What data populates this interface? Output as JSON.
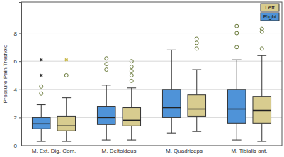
{
  "chart_data": {
    "type": "box",
    "y_label": "Pressure Pain Treshold",
    "categories": [
      "M. Ext. Dig. Com.",
      "M. Deltoideus",
      "M. Quadriceps",
      "M. Tibialis ant."
    ],
    "series": [
      {
        "name": "Right",
        "color": "#4f93d8",
        "values": [
          {
            "min": 0.3,
            "q1": 1.2,
            "median": 1.55,
            "q3": 2.0,
            "max": 2.9,
            "outliers": [
              3.7,
              4.2
            ],
            "extremes": [
              5.0,
              6.1
            ]
          },
          {
            "min": 0.4,
            "q1": 1.5,
            "median": 2.0,
            "q3": 2.8,
            "max": 4.3,
            "outliers": [
              5.4,
              5.8,
              6.2
            ],
            "extremes": []
          },
          {
            "min": 0.9,
            "q1": 2.0,
            "median": 2.7,
            "q3": 4.0,
            "max": 6.8,
            "outliers": [],
            "extremes": []
          },
          {
            "min": 0.4,
            "q1": 1.6,
            "median": 2.6,
            "q3": 4.0,
            "max": 6.1,
            "outliers": [
              7.0,
              8.0,
              8.5
            ],
            "extremes": []
          }
        ]
      },
      {
        "name": "Left",
        "color": "#d8cc8f",
        "values": [
          {
            "min": 0.3,
            "q1": 1.05,
            "median": 1.4,
            "q3": 2.1,
            "max": 3.4,
            "outliers": [
              5.0
            ],
            "extremes": [
              6.1
            ]
          },
          {
            "min": 0.4,
            "q1": 1.4,
            "median": 1.8,
            "q3": 2.7,
            "max": 4.1,
            "outliers": [
              4.6,
              5.0,
              5.3,
              5.6,
              6.0
            ],
            "extremes": []
          },
          {
            "min": 1.0,
            "q1": 2.1,
            "median": 2.6,
            "q3": 3.6,
            "max": 5.4,
            "outliers": [
              6.9,
              7.3,
              7.6
            ],
            "extremes": []
          },
          {
            "min": 0.3,
            "q1": 1.6,
            "median": 2.5,
            "q3": 3.5,
            "max": 6.4,
            "outliers": [
              6.9,
              8.1,
              8.3
            ],
            "extremes": []
          }
        ]
      }
    ],
    "ylim": [
      0,
      10.2
    ],
    "yticks": [
      0,
      2,
      4,
      6,
      8
    ],
    "grid": true,
    "legend": "top-right"
  }
}
